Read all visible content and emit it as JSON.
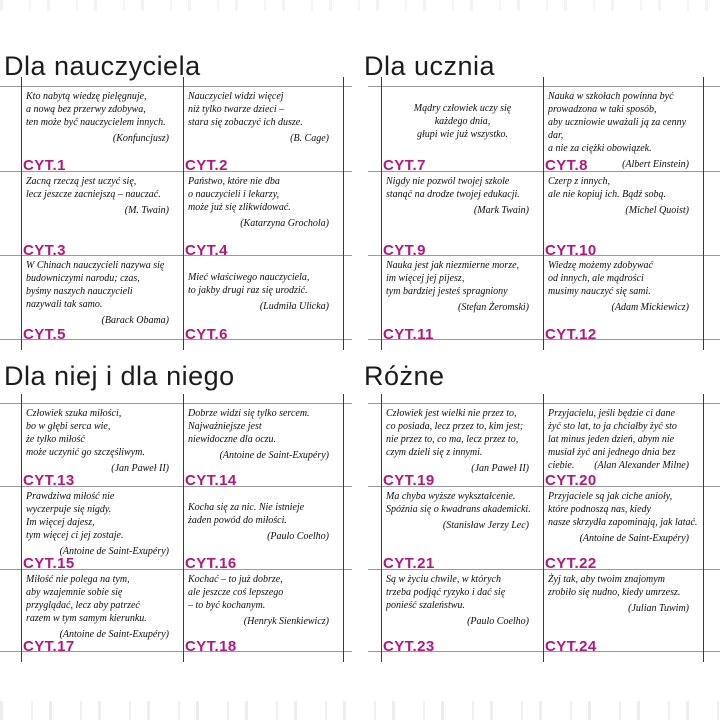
{
  "colors": {
    "accent": "#b2187f",
    "h_line": "#9b9b9b",
    "v_line": "#3c3c3c"
  },
  "sections": [
    {
      "title": "Dla nauczyciela",
      "cards": [
        {
          "id": "CYT.1",
          "quote": "Kto nabytą wiedzę pielęgnuje,\na nową bez przerwy zdobywa,\nten może być nauczycielem innych.",
          "author": "(Konfuncjusz)"
        },
        {
          "id": "CYT.2",
          "quote": "Nauczyciel widzi więcej\nniż tylko twarze dzieci –\nstara się zobaczyć ich dusze.",
          "author": "(B. Cage)"
        },
        {
          "id": "CYT.3",
          "quote": "Zacną rzeczą jest uczyć się,\nlecz jeszcze zacniejszą – nauczać.",
          "author": "(M. Twain)"
        },
        {
          "id": "CYT.4",
          "quote": "Państwo, które nie dba\no nauczycieli i lekarzy,\nmoże już się zlikwidować.",
          "author": "(Katarzyna Grochola)"
        },
        {
          "id": "CYT.5",
          "quote": "W Chinach nauczycieli nazywa się\nbudowniczymi narodu; czas,\nbyśmy naszych nauczycieli\nnazywali tak samo.",
          "author": "(Barack Obama)"
        },
        {
          "id": "CYT.6",
          "quote": "Mieć właściwego nauczyciela,\nto jakby drugi raz się urodzić.",
          "author": "(Ludmiła Ulicka)"
        }
      ]
    },
    {
      "title": "Dla ucznia",
      "cards": [
        {
          "id": "CYT.7",
          "quote": "Mądry człowiek uczy się\nkażdego dnia,\ngłupi wie już wszystko.",
          "author": ""
        },
        {
          "id": "CYT.8",
          "quote": "Nauka w szkołach powinna być\nprowadzona w taki sposób,\naby uczniowie uważali ją za cenny dar,\na nie za ciężki obowiązek.",
          "author": "(Albert Einstein)"
        },
        {
          "id": "CYT.9",
          "quote": "Nigdy nie pozwól twojej szkole\nstanąć na drodze twojej edukacji.",
          "author": "(Mark Twain)"
        },
        {
          "id": "CYT.10",
          "quote": "Czerp z innych,\nale nie kopiuj ich. Bądź sobą.",
          "author": "(Michel Quoist)"
        },
        {
          "id": "CYT.11",
          "quote": "Nauka jest jak niezmierne morze,\nim więcej jej pijesz,\ntym bardziej jesteś spragniony",
          "author": "(Stefan Żeromski)"
        },
        {
          "id": "CYT.12",
          "quote": "Wiedzę możemy zdobywać\nod innych, ale mądrości\nmusimy nauczyć się sami.",
          "author": "(Adam Mickiewicz)"
        }
      ]
    },
    {
      "title": "Dla niej i dla niego",
      "cards": [
        {
          "id": "CYT.13",
          "quote": "Człowiek szuka miłości,\nbo w głębi serca wie,\nże tylko miłość\nmoże uczynić go szczęśliwym.",
          "author": "(Jan Paweł II)"
        },
        {
          "id": "CYT.14",
          "quote": "Dobrze widzi się tylko sercem.\nNajważniejsze jest\nniewidoczne dla oczu.",
          "author": "(Antoine de Saint-Exupéry)"
        },
        {
          "id": "CYT.15",
          "quote": "Prawdziwa miłość nie\nwyczerpuje się nigdy.\nIm więcej dajesz,\ntym więcej ci jej zostaje.",
          "author": "(Antoine de Saint-Exupéry)"
        },
        {
          "id": "CYT.16",
          "quote": "Kocha się za nic. Nie istnieje\nżaden powód do miłości.",
          "author": "(Paulo Coelho)"
        },
        {
          "id": "CYT.17",
          "quote": "Miłość nie polega na tym,\naby wzajemnie sobie się\nprzyglądać, lecz aby patrzeć\nrazem w tym samym kierunku.",
          "author": "(Antoine de Saint-Exupéry)"
        },
        {
          "id": "CYT.18",
          "quote": "Kochać – to już dobrze,\nale jeszcze coś lepszego\n– to być kochanym.",
          "author": "(Henryk Sienkiewicz)"
        }
      ]
    },
    {
      "title": "Różne",
      "cards": [
        {
          "id": "CYT.19",
          "quote": "Człowiek jest wielki nie przez to,\nco posiada, lecz przez to, kim jest;\nnie przez to, co ma, lecz przez to,\nczym dzieli się z innymi.",
          "author": "(Jan Paweł II)"
        },
        {
          "id": "CYT.20",
          "quote": "Przyjacielu, jeśli będzie ci dane\nżyć sto lat, to ja chciałby żyć sto\nlat minus jeden dzień, abym nie\nmusiał żyć ani jednego dnia bez\nciebie.",
          "author": "(Alan Alexander Milne)"
        },
        {
          "id": "CYT.21",
          "quote": "Ma chyba wyższe wykształcenie.\nSpóźnia się o kwadrans akademicki.",
          "author": "(Stanisław Jerzy Lec)"
        },
        {
          "id": "CYT.22",
          "quote": "Przyjaciele są jak ciche anioły,\nktóre podnoszą nas, kiedy\nnasze skrzydła zapominają, jak latać.",
          "author": "(Antoine de Saint-Exupéry)"
        },
        {
          "id": "CYT.23",
          "quote": "Są w życiu chwile, w których\ntrzeba podjąć ryzyko i dać się\nponieść szaleństwu.",
          "author": "(Paulo Coelho)"
        },
        {
          "id": "CYT.24",
          "quote": "Żyj tak, aby twoim znajomym\nzrobiło się nudno, kiedy umrzesz.",
          "author": "(Julian Tuwim)"
        }
      ]
    }
  ]
}
